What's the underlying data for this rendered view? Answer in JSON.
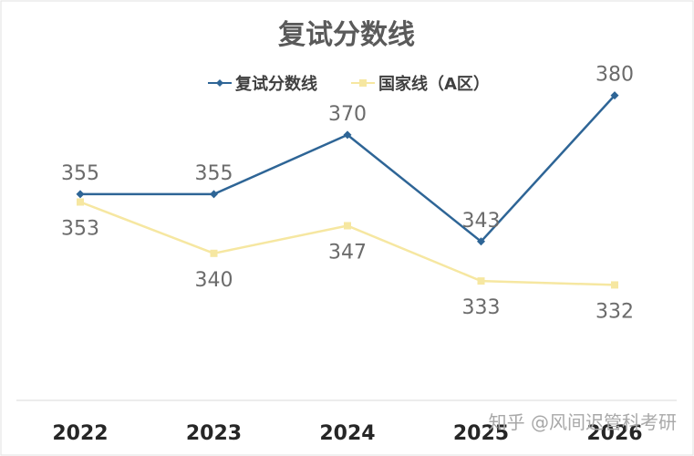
{
  "chart_data": {
    "type": "line",
    "title": "复试分数线",
    "categories": [
      "2022",
      "2023",
      "2024",
      "2025",
      "2026"
    ],
    "series": [
      {
        "name": "复试分数线",
        "values": [
          355,
          355,
          370,
          343,
          380
        ],
        "color": "#2e6596",
        "marker": "diamond"
      },
      {
        "name": "国家线（A区）",
        "values": [
          353,
          340,
          347,
          333,
          332
        ],
        "color": "#f6e7a1",
        "marker": "square"
      }
    ],
    "ylim": [
      303,
      397
    ],
    "grid": false,
    "legend_position": "top"
  },
  "watermark": "知乎 @风间迟管科考研"
}
